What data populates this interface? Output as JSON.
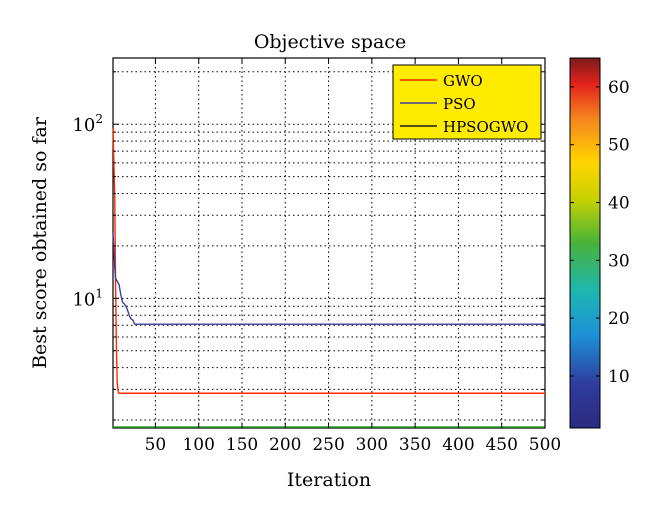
{
  "chart_data": {
    "type": "line",
    "title": "Objective space",
    "xlabel": "Iteration",
    "ylabel": "Best score obtained so far",
    "x_scale": "linear",
    "y_scale": "log",
    "xlim": [
      1,
      500
    ],
    "ylim": [
      1.8,
      240
    ],
    "xticks": [
      50,
      100,
      150,
      200,
      250,
      300,
      350,
      400,
      450,
      500
    ],
    "xtick_labels": [
      "50",
      "100",
      "150",
      "200",
      "250",
      "300",
      "350",
      "400",
      "450",
      "500"
    ],
    "yticks": [
      10,
      100
    ],
    "ytick_labels": [
      {
        "base": "10",
        "exp": "1"
      },
      {
        "base": "10",
        "exp": "2"
      }
    ],
    "grid": true,
    "legend_position": "top-right",
    "legend_background": "#ffeb00",
    "series": [
      {
        "name": "GWO",
        "color": "#ff2a00",
        "points": [
          [
            1,
            95
          ],
          [
            2,
            60
          ],
          [
            3,
            38
          ],
          [
            4,
            12
          ],
          [
            5,
            5
          ],
          [
            6,
            3.2
          ],
          [
            7,
            2.9
          ],
          [
            8,
            2.85
          ],
          [
            500,
            2.85
          ]
        ]
      },
      {
        "name": "PSO",
        "color": "#3d3fa0",
        "points": [
          [
            1,
            24
          ],
          [
            2,
            19
          ],
          [
            3,
            15
          ],
          [
            4,
            13
          ],
          [
            6,
            12.5
          ],
          [
            8,
            12
          ],
          [
            10,
            10.5
          ],
          [
            12,
            9.5
          ],
          [
            14,
            9.3
          ],
          [
            16,
            9.0
          ],
          [
            18,
            8.5
          ],
          [
            20,
            7.9
          ],
          [
            22,
            7.6
          ],
          [
            24,
            7.5
          ],
          [
            26,
            7.1
          ],
          [
            500,
            7.1
          ]
        ]
      },
      {
        "name": "HPSOGWO",
        "color": "#1a1a1a",
        "points": []
      }
    ],
    "colorbar": {
      "min": 1,
      "max": 65,
      "ticks": [
        10,
        20,
        30,
        40,
        50,
        60
      ],
      "tick_labels": [
        "10",
        "20",
        "30",
        "40",
        "50",
        "60"
      ],
      "colormap": "jet"
    }
  }
}
